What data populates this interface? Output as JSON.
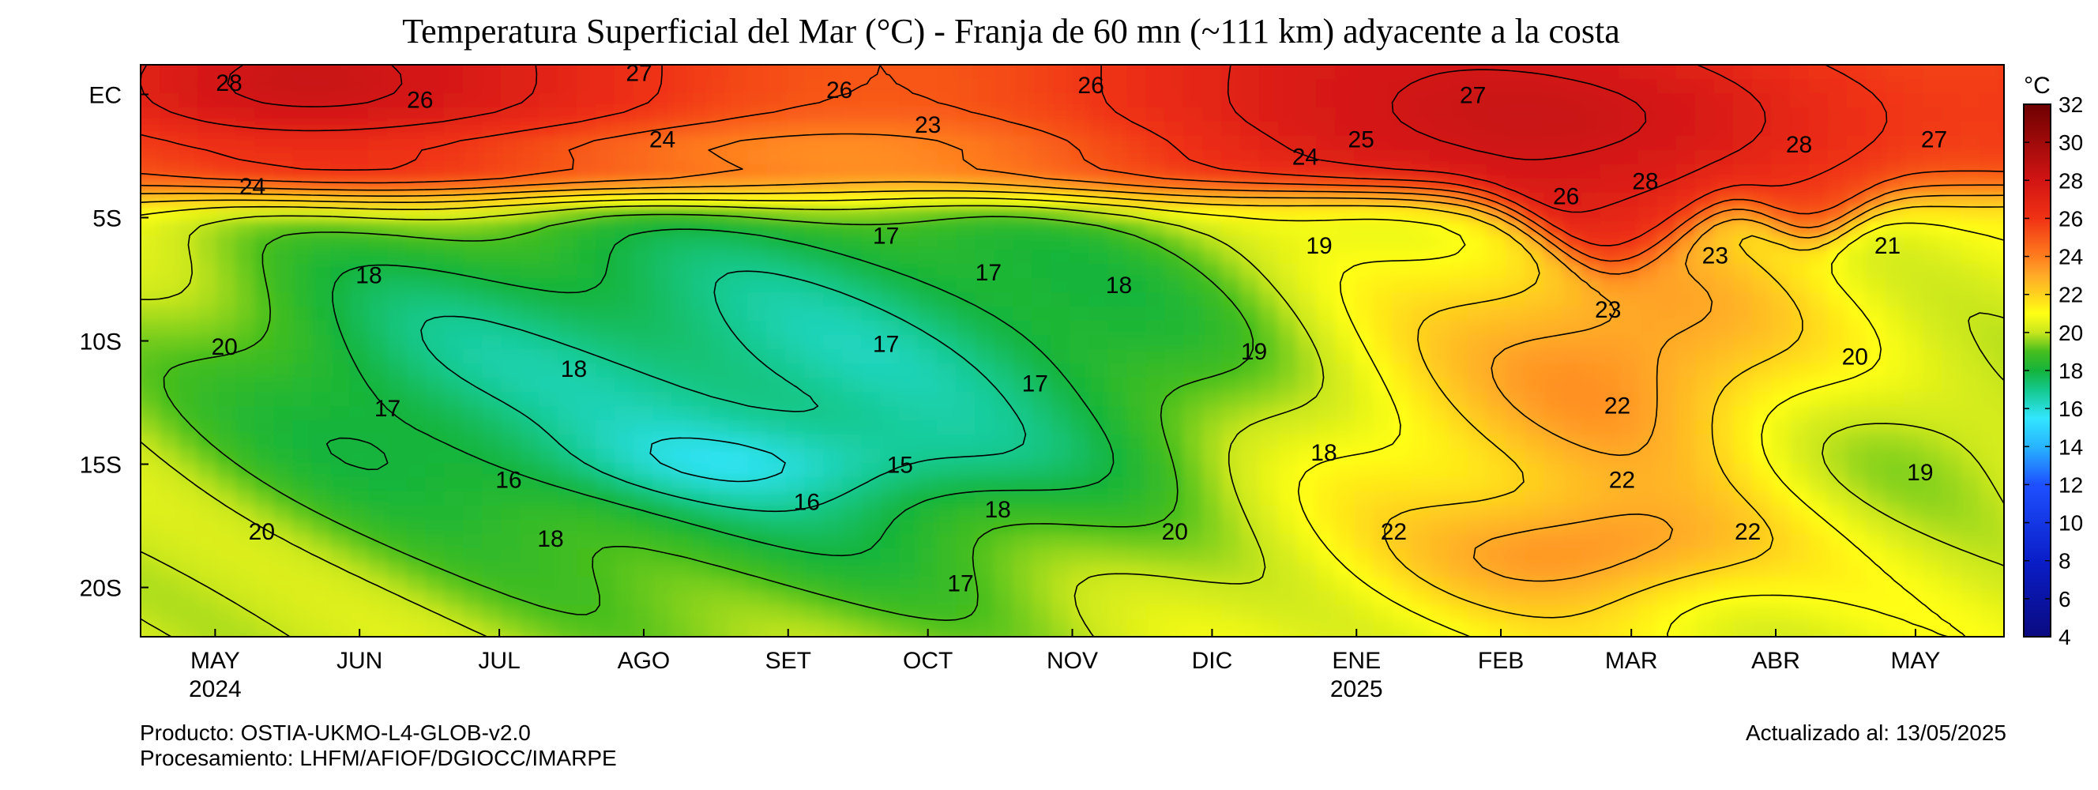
{
  "chart_data": {
    "type": "heatmap",
    "title": "Temperatura Superficial del Mar (°C) - Franja de 60 mn (~111 km) adyacente a la costa",
    "x_axis": {
      "start": "2024-04-15",
      "end": "2025-05-20",
      "ticks": [
        {
          "date": "2024-05-01",
          "label": "MAY",
          "sublabel": "2024"
        },
        {
          "date": "2024-06-01",
          "label": "JUN",
          "sublabel": ""
        },
        {
          "date": "2024-07-01",
          "label": "JUL",
          "sublabel": ""
        },
        {
          "date": "2024-08-01",
          "label": "AGO",
          "sublabel": ""
        },
        {
          "date": "2024-09-01",
          "label": "SET",
          "sublabel": ""
        },
        {
          "date": "2024-10-01",
          "label": "OCT",
          "sublabel": ""
        },
        {
          "date": "2024-11-01",
          "label": "NOV",
          "sublabel": ""
        },
        {
          "date": "2024-12-01",
          "label": "DIC",
          "sublabel": ""
        },
        {
          "date": "2025-01-01",
          "label": "ENE",
          "sublabel": "2025"
        },
        {
          "date": "2025-02-01",
          "label": "FEB",
          "sublabel": ""
        },
        {
          "date": "2025-03-01",
          "label": "MAR",
          "sublabel": ""
        },
        {
          "date": "2025-04-01",
          "label": "ABR",
          "sublabel": ""
        },
        {
          "date": "2025-05-01",
          "label": "MAY",
          "sublabel": ""
        }
      ]
    },
    "y_axis": {
      "top_lat": 1.2,
      "bottom_lat": -22,
      "ticks": [
        {
          "lat": 0,
          "label": "EC"
        },
        {
          "lat": -5,
          "label": "5S"
        },
        {
          "lat": -10,
          "label": "10S"
        },
        {
          "lat": -15,
          "label": "15S"
        },
        {
          "lat": -20,
          "label": "20S"
        }
      ]
    },
    "colorbar": {
      "unit": "°C",
      "min": 4,
      "max": 32,
      "ticks": [
        4,
        6,
        8,
        10,
        12,
        14,
        16,
        18,
        20,
        22,
        24,
        26,
        28,
        30,
        32
      ],
      "stops": [
        {
          "v": 4,
          "c": "#0a0a80"
        },
        {
          "v": 8,
          "c": "#0a1ec8"
        },
        {
          "v": 12,
          "c": "#1e50ff"
        },
        {
          "v": 14,
          "c": "#28b4ff"
        },
        {
          "v": 15.5,
          "c": "#32e6ff"
        },
        {
          "v": 17,
          "c": "#14c88c"
        },
        {
          "v": 18,
          "c": "#14b43c"
        },
        {
          "v": 19,
          "c": "#46be1e"
        },
        {
          "v": 20,
          "c": "#c8e61e"
        },
        {
          "v": 21,
          "c": "#ffff14"
        },
        {
          "v": 22,
          "c": "#ffd21e"
        },
        {
          "v": 23,
          "c": "#ffaa28"
        },
        {
          "v": 24,
          "c": "#ff7d1e"
        },
        {
          "v": 26,
          "c": "#f03214"
        },
        {
          "v": 28,
          "c": "#d21414"
        },
        {
          "v": 30,
          "c": "#a00a0a"
        },
        {
          "v": 32,
          "c": "#6e0000"
        }
      ]
    },
    "contour_labels": [
      {
        "text": "28",
        "date": "2024-05-04",
        "lat": 0.4
      },
      {
        "text": "27",
        "date": "2024-07-31",
        "lat": 0.8
      },
      {
        "text": "26",
        "date": "2024-06-14",
        "lat": -0.3
      },
      {
        "text": "26",
        "date": "2024-09-12",
        "lat": 0.1
      },
      {
        "text": "26",
        "date": "2024-11-05",
        "lat": 0.3
      },
      {
        "text": "27",
        "date": "2025-01-26",
        "lat": -0.1
      },
      {
        "text": "27",
        "date": "2025-05-05",
        "lat": -1.9
      },
      {
        "text": "24",
        "date": "2024-08-05",
        "lat": -1.9
      },
      {
        "text": "23",
        "date": "2024-10-01",
        "lat": -1.3
      },
      {
        "text": "24",
        "date": "2024-12-21",
        "lat": -2.6
      },
      {
        "text": "25",
        "date": "2025-01-02",
        "lat": -1.9
      },
      {
        "text": "28",
        "date": "2025-04-06",
        "lat": -2.1
      },
      {
        "text": "28",
        "date": "2025-03-04",
        "lat": -3.6
      },
      {
        "text": "24",
        "date": "2024-05-09",
        "lat": -3.8
      },
      {
        "text": "26",
        "date": "2025-02-15",
        "lat": -4.2
      },
      {
        "text": "17",
        "date": "2024-09-22",
        "lat": -5.8
      },
      {
        "text": "19",
        "date": "2024-12-24",
        "lat": -6.2
      },
      {
        "text": "23",
        "date": "2025-03-19",
        "lat": -6.6
      },
      {
        "text": "21",
        "date": "2025-04-25",
        "lat": -6.2
      },
      {
        "text": "18",
        "date": "2024-06-03",
        "lat": -7.4
      },
      {
        "text": "17",
        "date": "2024-10-14",
        "lat": -7.3
      },
      {
        "text": "18",
        "date": "2024-11-11",
        "lat": -7.8
      },
      {
        "text": "23",
        "date": "2025-02-24",
        "lat": -8.8
      },
      {
        "text": "20",
        "date": "2024-05-03",
        "lat": -10.3
      },
      {
        "text": "17",
        "date": "2024-09-22",
        "lat": -10.2
      },
      {
        "text": "19",
        "date": "2024-12-10",
        "lat": -10.5
      },
      {
        "text": "20",
        "date": "2025-04-18",
        "lat": -10.7
      },
      {
        "text": "18",
        "date": "2024-07-17",
        "lat": -11.2
      },
      {
        "text": "17",
        "date": "2024-10-24",
        "lat": -11.8
      },
      {
        "text": "22",
        "date": "2025-02-26",
        "lat": -12.7
      },
      {
        "text": "17",
        "date": "2024-06-07",
        "lat": -12.8
      },
      {
        "text": "18",
        "date": "2024-12-25",
        "lat": -14.6
      },
      {
        "text": "15",
        "date": "2024-09-25",
        "lat": -15.1
      },
      {
        "text": "16",
        "date": "2024-07-03",
        "lat": -15.7
      },
      {
        "text": "22",
        "date": "2025-02-27",
        "lat": -15.7
      },
      {
        "text": "19",
        "date": "2025-05-02",
        "lat": -15.4
      },
      {
        "text": "16",
        "date": "2024-09-05",
        "lat": -16.6
      },
      {
        "text": "18",
        "date": "2024-10-16",
        "lat": -16.9
      },
      {
        "text": "20",
        "date": "2024-05-11",
        "lat": -17.8
      },
      {
        "text": "18",
        "date": "2024-07-12",
        "lat": -18.1
      },
      {
        "text": "20",
        "date": "2024-11-23",
        "lat": -17.8
      },
      {
        "text": "22",
        "date": "2025-01-09",
        "lat": -17.8
      },
      {
        "text": "22",
        "date": "2025-03-26",
        "lat": -17.8
      },
      {
        "text": "17",
        "date": "2024-10-08",
        "lat": -19.9
      }
    ]
  },
  "footer": {
    "product": "Producto: OSTIA-UKMO-L4-GLOB-v2.0",
    "processing": "Procesamiento: LHFM/AFIOF/DGIOCC/IMARPE",
    "updated": "Actualizado al: 13/05/2025"
  }
}
